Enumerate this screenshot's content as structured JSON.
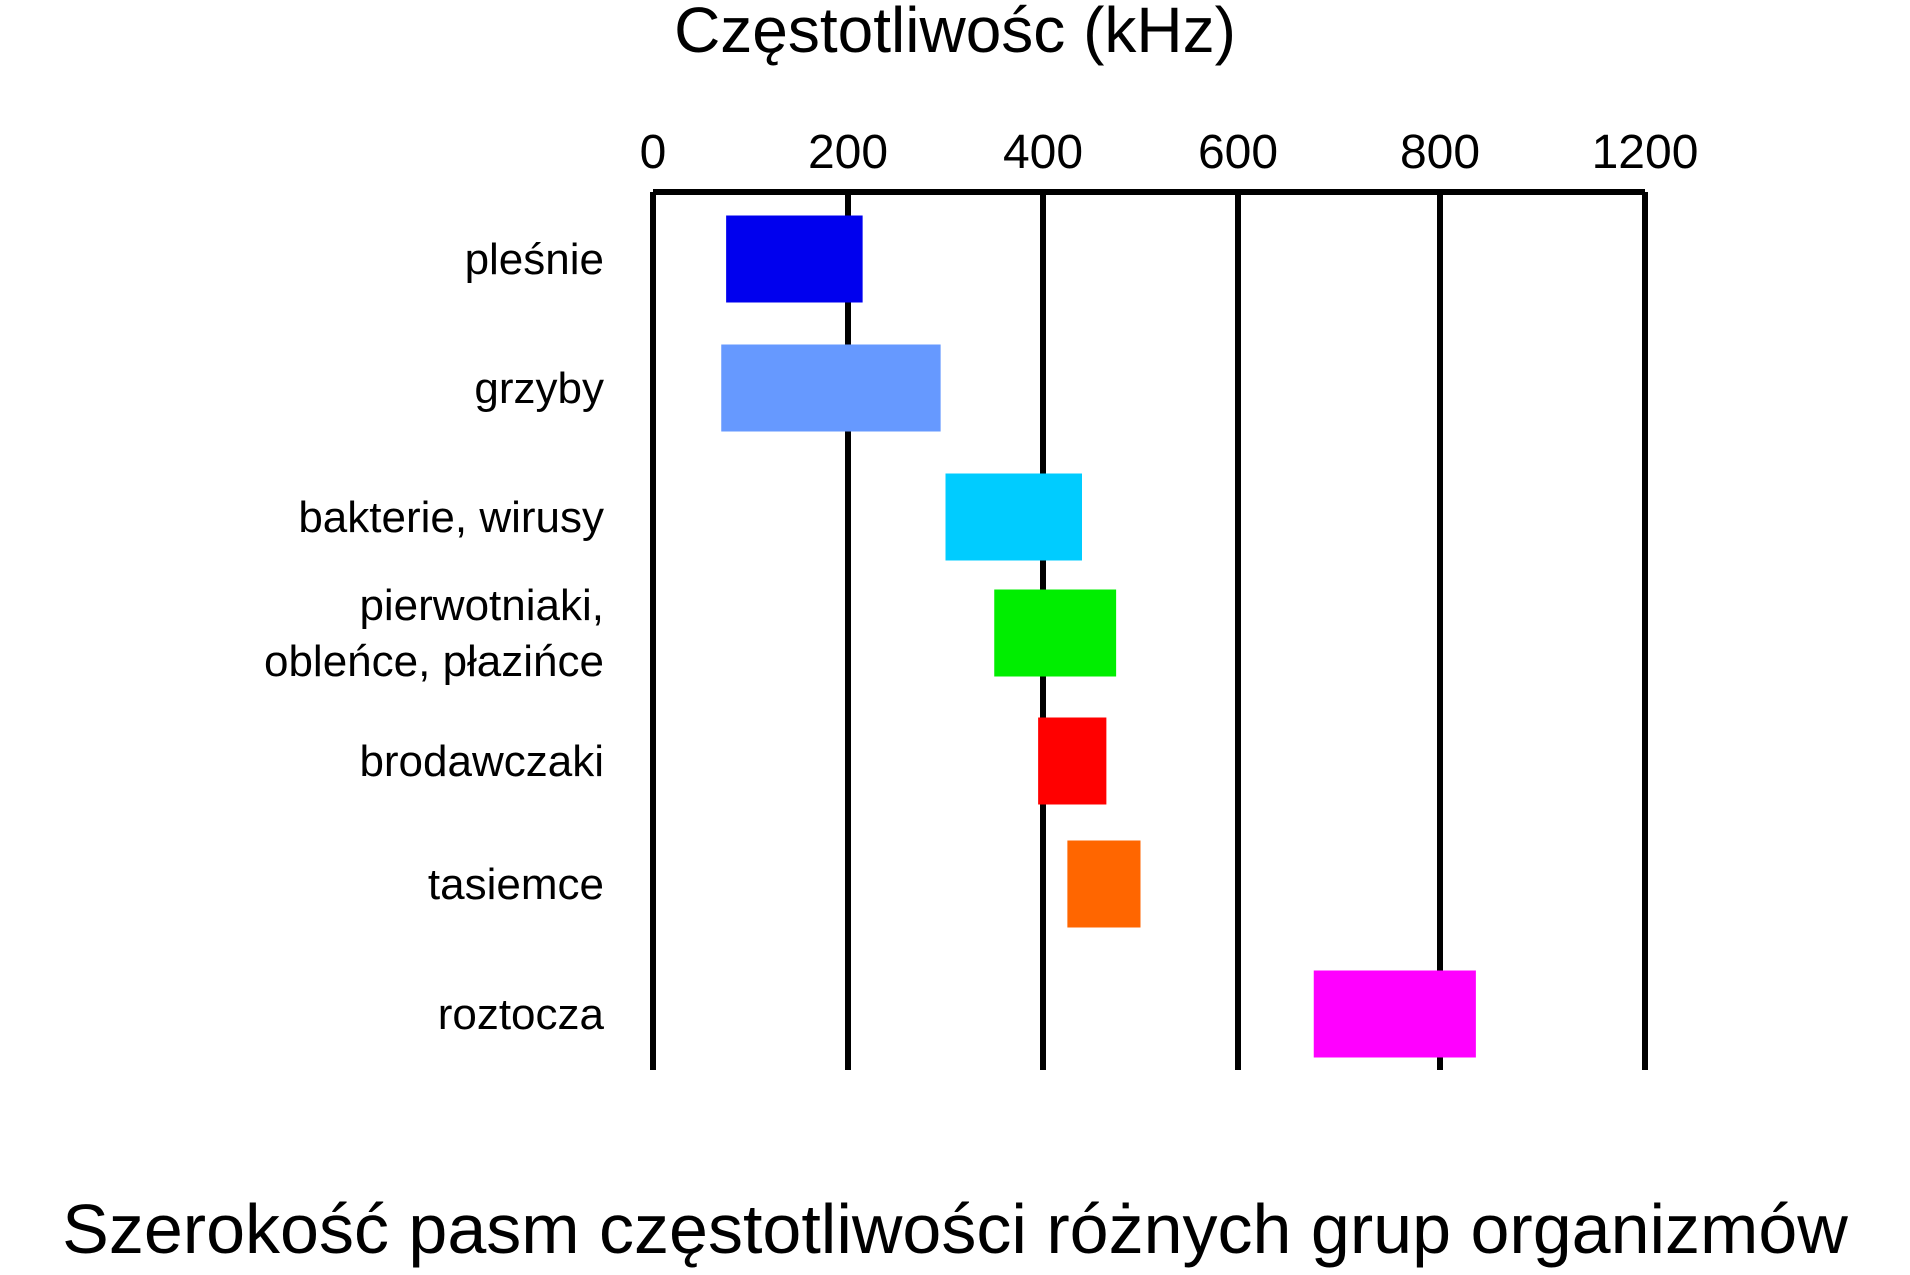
{
  "chart_data": {
    "type": "range-bar",
    "title": "Częstotliwośc (kHz)",
    "caption": "Szerokość pasm częstotliwości różnych grup organizmów",
    "axis": {
      "tick_labels": [
        "0",
        "200",
        "400",
        "600",
        "800",
        "1200"
      ],
      "gridlines": true,
      "position": "top"
    },
    "categories": [
      [
        "pleśnie"
      ],
      [
        "grzyby"
      ],
      [
        "bakterie, wirusy"
      ],
      [
        "pierwotniaki,",
        "obleńce, płazińce"
      ],
      [
        "brodawczaki"
      ],
      [
        "tasiemce"
      ],
      [
        "roztocza"
      ]
    ],
    "ranges_khz": [
      [
        75,
        215
      ],
      [
        70,
        295
      ],
      [
        300,
        440
      ],
      [
        350,
        475
      ],
      [
        395,
        465
      ],
      [
        425,
        500
      ],
      [
        675,
        870
      ]
    ],
    "colors": [
      "#0000ee",
      "#6699ff",
      "#00ccff",
      "#00ee00",
      "#ff0000",
      "#ff6600",
      "#ff00ff"
    ]
  }
}
